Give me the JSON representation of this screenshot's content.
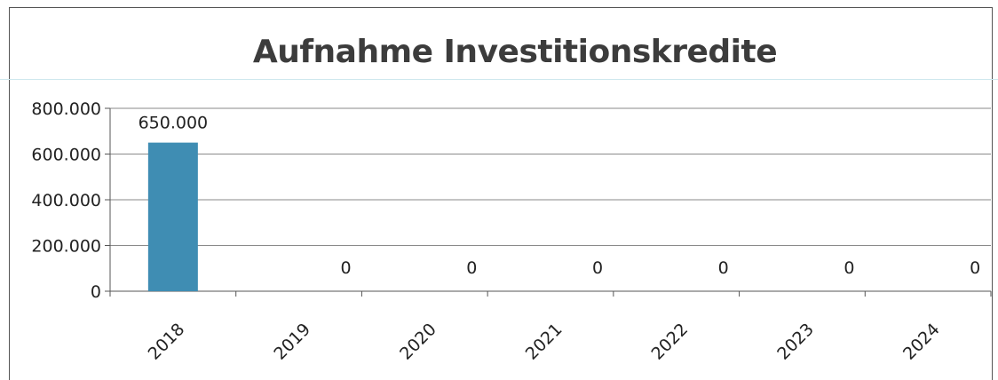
{
  "chart_data": {
    "type": "bar",
    "title": "Aufnahme Investitionskredite",
    "categories": [
      "2018",
      "2019",
      "2020",
      "2021",
      "2022",
      "2023",
      "2024"
    ],
    "values": [
      650000,
      0,
      0,
      0,
      0,
      0,
      0
    ],
    "data_labels": [
      "650.000",
      "0",
      "0",
      "0",
      "0",
      "0",
      "0"
    ],
    "ylim": [
      0,
      800000
    ],
    "yticks": [
      0,
      200000,
      400000,
      600000,
      800000
    ],
    "ytick_labels": [
      "0",
      "200.000",
      "400.000",
      "600.000",
      "800.000"
    ],
    "grid": true,
    "bar_color": "#3f8db3"
  }
}
